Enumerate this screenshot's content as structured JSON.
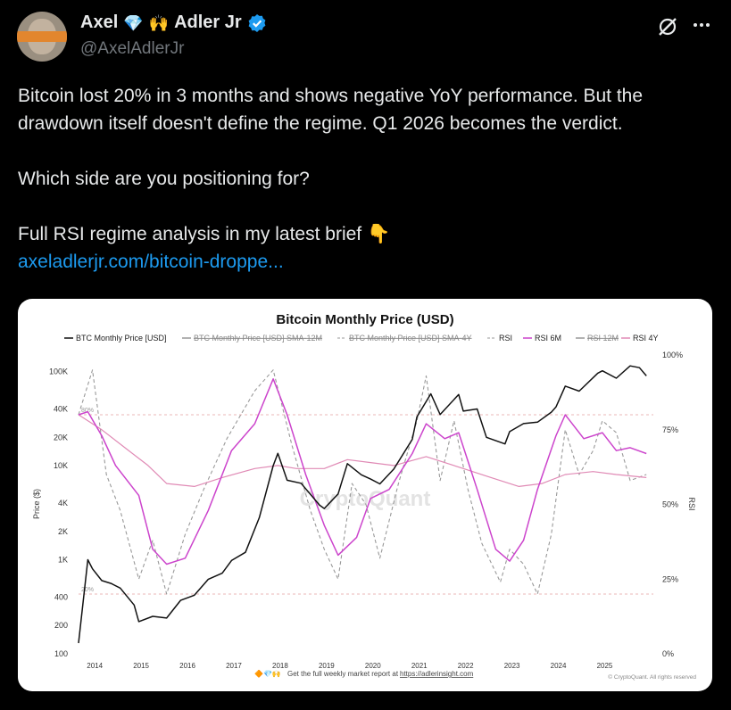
{
  "author": {
    "name": "Axel",
    "surname": "Adler Jr",
    "name_emojis": [
      "💎",
      "🙌"
    ],
    "handle": "@AxelAdlerJr"
  },
  "tweet": {
    "line1": "Bitcoin lost 20% in 3 months and shows negative YoY performance. But the drawdown itself doesn't define the regime. Q1 2026 becomes the verdict.",
    "line2": "Which side are you positioning for?",
    "line3": "Full RSI regime analysis in my latest brief",
    "line3_emoji": "👇",
    "link": "axeladlerjr.com/bitcoin-droppe..."
  },
  "chart_data": {
    "type": "line",
    "title": "Bitcoin Monthly Price (USD)",
    "legend": [
      "BTC Monthly Price [USD]",
      "BTC Monthly Price [USD] SMA-12M",
      "BTC Monthly Price [USD] SMA-4Y",
      "RSI",
      "RSI 6M",
      "RSI 12M",
      "RSI 4Y"
    ],
    "xlabel": "",
    "ylabel": "Price ($)",
    "y2label": "RSI",
    "x_ticks": [
      "2014",
      "2015",
      "2016",
      "2017",
      "2018",
      "2019",
      "2020",
      "2021",
      "2022",
      "2023",
      "2024",
      "2025"
    ],
    "y_ticks": [
      "100K",
      "40K",
      "20K",
      "10K",
      "4K",
      "2K",
      "1K",
      "400",
      "200",
      "100"
    ],
    "y2_ticks": [
      "100%",
      "75%",
      "50%",
      "25%",
      "0%"
    ],
    "ref_labels": [
      "80%",
      "20%"
    ],
    "watermark": "CryptoQuant",
    "footer_promo": "Get the full weekly market report at",
    "footer_url": "https://adlerinsight.com",
    "footer_emojis": "🔶💎🙌",
    "copyright": "© CryptoQuant. All rights reserved",
    "colors": {
      "price": "#111111",
      "rsi": "#999999",
      "rsi6m": "#cc44cc",
      "rsi4y": "#e08ab5",
      "ref": "#e5a0a0"
    },
    "series": [
      {
        "name": "BTC Monthly Price [USD]",
        "x": [
          2013.7,
          2013.9,
          2014.0,
          2014.2,
          2014.4,
          2014.6,
          2014.9,
          2015.0,
          2015.3,
          2015.6,
          2015.9,
          2016.2,
          2016.5,
          2016.8,
          2017.0,
          2017.3,
          2017.6,
          2017.9,
          2018.0,
          2018.2,
          2018.5,
          2018.9,
          2019.0,
          2019.3,
          2019.5,
          2019.8,
          2020.0,
          2020.2,
          2020.5,
          2020.9,
          2021.0,
          2021.3,
          2021.5,
          2021.9,
          2022.0,
          2022.3,
          2022.5,
          2022.9,
          2023.0,
          2023.3,
          2023.6,
          2023.9,
          2024.0,
          2024.2,
          2024.5,
          2024.9,
          2025.0,
          2025.3,
          2025.6,
          2025.8,
          2025.95
        ],
        "y": [
          130,
          1000,
          800,
          600,
          560,
          500,
          330,
          220,
          250,
          240,
          370,
          420,
          620,
          720,
          980,
          1200,
          2800,
          10000,
          13500,
          7000,
          6500,
          3800,
          3500,
          5000,
          10500,
          8000,
          7200,
          6400,
          9200,
          19000,
          33000,
          58000,
          35000,
          57000,
          38000,
          40000,
          20000,
          17000,
          23000,
          28000,
          29000,
          37000,
          42000,
          70000,
          62000,
          96000,
          102000,
          85000,
          115000,
          110000,
          90000
        ]
      },
      {
        "name": "RSI 6M",
        "x": [
          2013.7,
          2013.9,
          2014.2,
          2014.5,
          2015.0,
          2015.3,
          2015.6,
          2016.0,
          2016.5,
          2017.0,
          2017.5,
          2017.9,
          2018.2,
          2018.6,
          2019.0,
          2019.3,
          2019.7,
          2020.0,
          2020.4,
          2020.9,
          2021.2,
          2021.6,
          2021.9,
          2022.3,
          2022.7,
          2023.0,
          2023.3,
          2023.6,
          2024.0,
          2024.2,
          2024.6,
          2025.0,
          2025.3,
          2025.6,
          2025.95
        ],
        "y": [
          80,
          81,
          73,
          63,
          53,
          35,
          30,
          32,
          48,
          68,
          77,
          92,
          80,
          60,
          43,
          33,
          39,
          52,
          55,
          67,
          77,
          72,
          74,
          55,
          35,
          31,
          38,
          55,
          73,
          80,
          72,
          74,
          68,
          69,
          67
        ]
      },
      {
        "name": "RSI 4Y",
        "x": [
          2013.7,
          2014.2,
          2014.7,
          2015.2,
          2015.6,
          2016.2,
          2016.8,
          2017.5,
          2018.0,
          2018.4,
          2019.0,
          2019.5,
          2020.0,
          2020.5,
          2021.2,
          2022.0,
          2022.6,
          2023.2,
          2023.7,
          2024.2,
          2024.8,
          2025.3,
          2025.95
        ],
        "y": [
          80,
          75,
          69,
          63,
          57,
          56,
          59,
          62,
          63,
          62,
          62,
          65,
          64,
          63,
          66,
          62,
          59,
          56,
          57,
          60,
          61,
          60,
          59
        ]
      },
      {
        "name": "RSI",
        "x": [
          2013.7,
          2014.0,
          2014.3,
          2014.6,
          2015.0,
          2015.3,
          2015.6,
          2016.0,
          2016.4,
          2016.9,
          2017.5,
          2017.9,
          2018.3,
          2018.7,
          2019.0,
          2019.3,
          2019.6,
          2019.9,
          2020.2,
          2020.6,
          2021.0,
          2021.2,
          2021.5,
          2021.8,
          2022.1,
          2022.4,
          2022.8,
          2023.0,
          2023.3,
          2023.6,
          2023.9,
          2024.2,
          2024.5,
          2024.8,
          2025.0,
          2025.3,
          2025.6,
          2025.95
        ],
        "y": [
          80,
          95,
          60,
          48,
          25,
          38,
          20,
          40,
          55,
          72,
          88,
          95,
          70,
          48,
          35,
          25,
          57,
          50,
          32,
          57,
          78,
          93,
          58,
          78,
          55,
          37,
          24,
          35,
          30,
          20,
          40,
          75,
          60,
          68,
          78,
          74,
          58,
          60
        ]
      }
    ]
  }
}
